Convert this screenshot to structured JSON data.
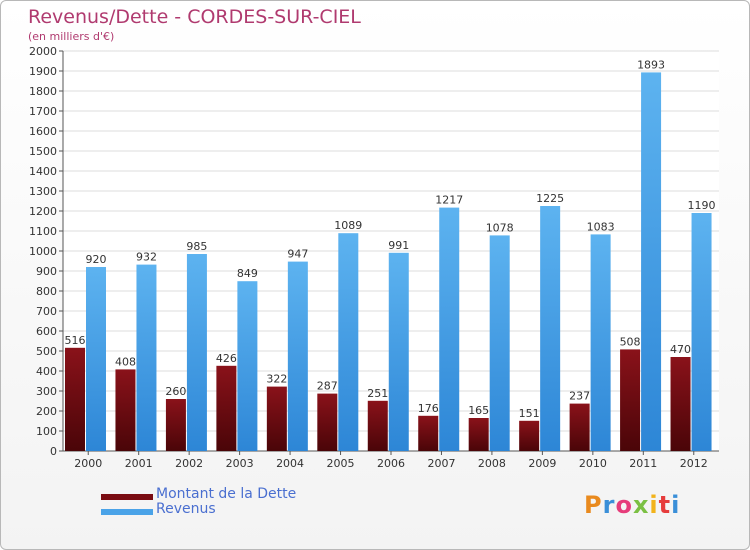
{
  "chart_data": {
    "type": "bar",
    "title": "Revenus/Dette - CORDES-SUR-CIEL",
    "subtitle": "(en milliers d'€)",
    "xlabel": "",
    "ylabel": "",
    "ylim": [
      0,
      2000
    ],
    "ytick_step": 100,
    "grid": true,
    "categories": [
      "2000",
      "2001",
      "2002",
      "2003",
      "2004",
      "2005",
      "2006",
      "2007",
      "2008",
      "2009",
      "2010",
      "2011",
      "2012"
    ],
    "series": [
      {
        "name": "Montant de la Dette",
        "color": "#7a0c12",
        "values": [
          516,
          408,
          260,
          426,
          322,
          287,
          251,
          176,
          165,
          151,
          237,
          508,
          470
        ]
      },
      {
        "name": "Revenus",
        "color": "#4aa3e8",
        "values": [
          920,
          932,
          985,
          849,
          947,
          1089,
          991,
          1217,
          1078,
          1225,
          1083,
          1893,
          1190
        ]
      }
    ]
  },
  "logo": {
    "text": "Proxiti"
  }
}
